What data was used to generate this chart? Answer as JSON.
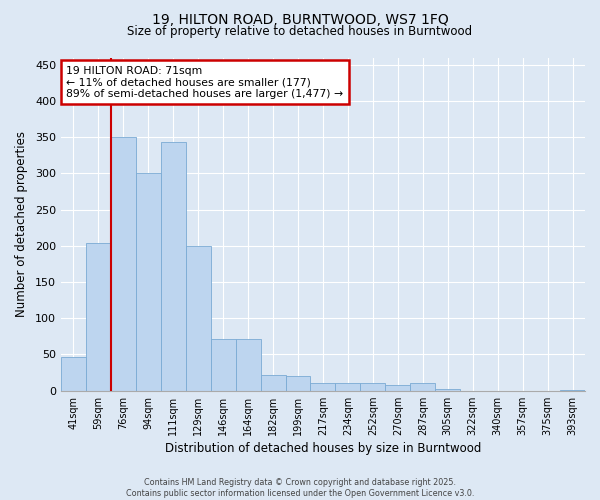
{
  "title_line1": "19, HILTON ROAD, BURNTWOOD, WS7 1FQ",
  "title_line2": "Size of property relative to detached houses in Burntwood",
  "xlabel": "Distribution of detached houses by size in Burntwood",
  "ylabel": "Number of detached properties",
  "categories": [
    "41sqm",
    "59sqm",
    "76sqm",
    "94sqm",
    "111sqm",
    "129sqm",
    "146sqm",
    "164sqm",
    "182sqm",
    "199sqm",
    "217sqm",
    "234sqm",
    "252sqm",
    "270sqm",
    "287sqm",
    "305sqm",
    "322sqm",
    "340sqm",
    "357sqm",
    "375sqm",
    "393sqm"
  ],
  "values": [
    46,
    204,
    350,
    300,
    344,
    200,
    72,
    72,
    22,
    20,
    10,
    10,
    10,
    8,
    10,
    2,
    0,
    0,
    0,
    0,
    1
  ],
  "bar_color": "#bdd5ef",
  "bar_edge_color": "#7aaad4",
  "vline_color": "#cc0000",
  "vline_x": 1.5,
  "annotation_text": "19 HILTON ROAD: 71sqm\n← 11% of detached houses are smaller (177)\n89% of semi-detached houses are larger (1,477) →",
  "annotation_box_facecolor": "#ffffff",
  "annotation_box_edgecolor": "#cc0000",
  "ylim": [
    0,
    460
  ],
  "yticks": [
    0,
    50,
    100,
    150,
    200,
    250,
    300,
    350,
    400,
    450
  ],
  "bg_color": "#dde8f4",
  "plot_bg_color": "#dde8f4",
  "grid_color": "#ffffff",
  "title_fontsize": 10,
  "subtitle_fontsize": 8.5,
  "footer_line1": "Contains HM Land Registry data © Crown copyright and database right 2025.",
  "footer_line2": "Contains public sector information licensed under the Open Government Licence v3.0."
}
